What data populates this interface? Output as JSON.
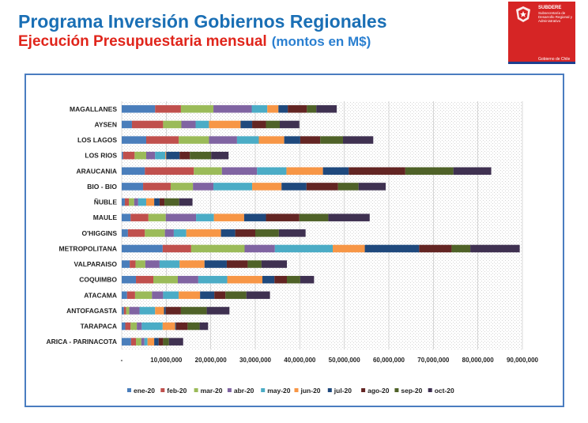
{
  "header": {
    "title": "Programa Inversión Gobiernos Regionales",
    "subtitle": "Ejecución Presupuestaria mensual",
    "units_note": "(montos en M$)"
  },
  "logo": {
    "org": "SUBDERE",
    "org_full": "Subsecretaría de Desarrollo Regional y Administrativo",
    "gov": "Gobierno de Chile"
  },
  "colors": {
    "title": "#1a6fb5",
    "subtitle": "#e0251b",
    "frame": "#4a7dc0",
    "logo_bg": "#d62525"
  },
  "chart_data": {
    "type": "bar",
    "orientation": "horizontal",
    "stacked": true,
    "title": "",
    "xlabel": "",
    "ylabel": "",
    "xlim": [
      0,
      90000000
    ],
    "x_ticks": [
      "-",
      "10,000,000",
      "20,000,000",
      "30,000,000",
      "40,000,000",
      "50,000,000",
      "60,000,000",
      "70,000,000",
      "80,000,000",
      "90,000,000"
    ],
    "grid": true,
    "legend": "bottom",
    "categories": [
      "MAGALLANES",
      "AYSEN",
      "LOS LAGOS",
      "LOS RIOS",
      "ARAUCANIA",
      "BIO - BIO",
      "ÑUBLE",
      "MAULE",
      "O'HIGGINS",
      "METROPOLITANA",
      "VALPARAISO",
      "COQUIMBO",
      "ATACAMA",
      "ANTOFAGASTA",
      "TARAPACA",
      "ARICA - PARINACOTA"
    ],
    "series": [
      {
        "name": "ene-20",
        "color": "#4a7ebb",
        "values": [
          7500000,
          2300000,
          5500000,
          300000,
          5200000,
          4800000,
          700000,
          2000000,
          1400000,
          9200000,
          1800000,
          3200000,
          1200000,
          500000,
          800000,
          2100000
        ]
      },
      {
        "name": "feb-20",
        "color": "#c0504d",
        "values": [
          5800000,
          7000000,
          7300000,
          2600000,
          11000000,
          6200000,
          900000,
          4000000,
          3800000,
          6400000,
          1300000,
          3900000,
          1800000,
          500000,
          1200000,
          1100000
        ]
      },
      {
        "name": "mar-20",
        "color": "#9bbb59",
        "values": [
          7300000,
          4100000,
          6800000,
          2600000,
          6300000,
          5000000,
          1200000,
          3900000,
          4500000,
          12000000,
          2200000,
          5500000,
          3800000,
          700000,
          1400000,
          1200000
        ]
      },
      {
        "name": "abr-20",
        "color": "#8064a2",
        "values": [
          8600000,
          3200000,
          6300000,
          2000000,
          7900000,
          4600000,
          900000,
          6800000,
          2000000,
          6800000,
          3200000,
          4600000,
          2500000,
          2300000,
          1100000,
          700000
        ]
      },
      {
        "name": "may-20",
        "color": "#4bacc6",
        "values": [
          3500000,
          3000000,
          4900000,
          2300000,
          6600000,
          8700000,
          1800000,
          4000000,
          2800000,
          13000000,
          4500000,
          6500000,
          3500000,
          3500000,
          4700000,
          700000
        ]
      },
      {
        "name": "jun-20",
        "color": "#f79646",
        "values": [
          2500000,
          7100000,
          5700000,
          200000,
          8200000,
          6600000,
          1800000,
          6800000,
          7800000,
          7200000,
          5600000,
          7900000,
          4800000,
          2000000,
          2800000,
          1500000
        ]
      },
      {
        "name": "jul-20",
        "color": "#1f497d",
        "values": [
          2100000,
          2600000,
          3600000,
          3000000,
          5800000,
          5600000,
          1200000,
          4900000,
          3200000,
          12200000,
          5000000,
          2700000,
          3200000,
          400000,
          200000,
          1000000
        ]
      },
      {
        "name": "ago-20",
        "color": "#632523",
        "values": [
          4300000,
          3100000,
          4500000,
          2300000,
          12700000,
          7100000,
          1100000,
          7500000,
          4500000,
          7300000,
          4700000,
          2800000,
          2500000,
          3400000,
          2600000,
          1000000
        ]
      },
      {
        "name": "sep-20",
        "color": "#4f6228",
        "values": [
          2100000,
          3100000,
          5100000,
          4800000,
          10800000,
          4600000,
          3300000,
          6500000,
          5300000,
          4200000,
          3100000,
          3000000,
          4700000,
          5800000,
          2700000,
          1300000
        ]
      },
      {
        "name": "oct-20",
        "color": "#3f3151",
        "values": [
          4600000,
          4400000,
          6800000,
          3900000,
          8500000,
          6100000,
          3000000,
          9300000,
          6000000,
          11100000,
          5700000,
          3100000,
          5300000,
          5100000,
          1900000,
          3200000
        ]
      }
    ]
  }
}
